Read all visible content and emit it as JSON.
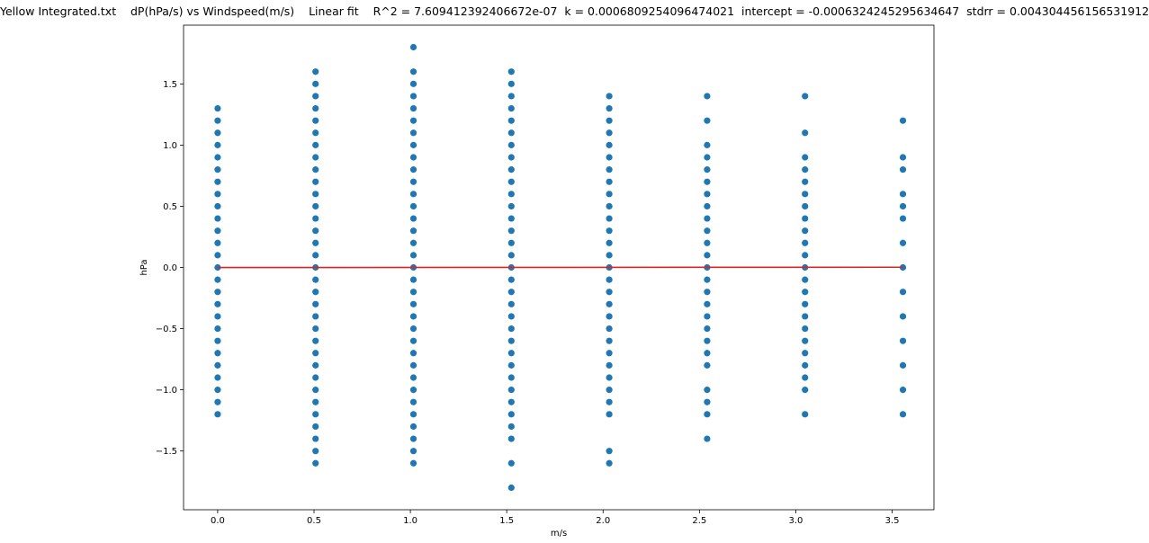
{
  "chart_data": {
    "type": "scatter",
    "title": "Yellow Integrated.txt    dP(hPa/s) vs Windspeed(m/s)    Linear fit    R^2 = 7.609412392406672e-07  k = 0.0006809254096474021  intercept = -0.0006324245295634647  stdrr = 0.004304456156531912",
    "xlabel": "m/s",
    "ylabel": "hPa",
    "xlim": [
      -0.177,
      3.717
    ],
    "ylim": [
      -1.98,
      1.98
    ],
    "xticks": [
      0.0,
      0.5,
      1.0,
      1.5,
      2.0,
      2.5,
      3.0,
      3.5
    ],
    "xtick_labels": [
      "0.0",
      "0.5",
      "1.0",
      "1.5",
      "2.0",
      "2.5",
      "3.0",
      "3.5"
    ],
    "yticks": [
      -1.5,
      -1.0,
      -0.5,
      0.0,
      0.5,
      1.0,
      1.5
    ],
    "ytick_labels": [
      "−1.5",
      "−1.0",
      "−0.5",
      "0.0",
      "0.5",
      "1.0",
      "1.5"
    ],
    "grid": false,
    "point_color": "#1f77b4",
    "fit_color": "#d62728",
    "series": [
      {
        "x": 0.0,
        "y_min": -1.2,
        "y_max": 1.3,
        "step": 0.1,
        "missing": []
      },
      {
        "x": 0.508,
        "y_min": -1.6,
        "y_max": 1.6,
        "step": 0.1,
        "missing": []
      },
      {
        "x": 1.016,
        "y_min": -1.6,
        "y_max": 1.8,
        "step": 0.1,
        "missing": [
          1.7
        ]
      },
      {
        "x": 1.524,
        "y_min": -1.8,
        "y_max": 1.6,
        "step": 0.1,
        "missing": [
          -1.7,
          -1.5
        ]
      },
      {
        "x": 2.032,
        "y_min": -1.6,
        "y_max": 1.4,
        "step": 0.1,
        "missing": [
          -1.4,
          -1.3
        ]
      },
      {
        "x": 2.54,
        "y_min": -1.4,
        "y_max": 1.4,
        "step": 0.1,
        "missing": [
          -1.3,
          -0.9,
          1.1,
          1.3
        ]
      },
      {
        "x": 3.048,
        "y_min": -1.2,
        "y_max": 1.4,
        "step": 0.1,
        "missing": [
          -1.1,
          1.0,
          1.2,
          1.3
        ]
      },
      {
        "x": 3.556,
        "y_min": -1.2,
        "y_max": 1.2,
        "step": 0.1,
        "missing": [
          -1.1,
          -0.9,
          -0.7,
          -0.5,
          -0.3,
          -0.1,
          0.1,
          0.3,
          0.7,
          1.0,
          1.1
        ]
      }
    ],
    "fit": {
      "k": 0.0006809254096474021,
      "intercept": -0.0006324245295634647,
      "x_range": [
        0.0,
        3.556
      ]
    }
  }
}
